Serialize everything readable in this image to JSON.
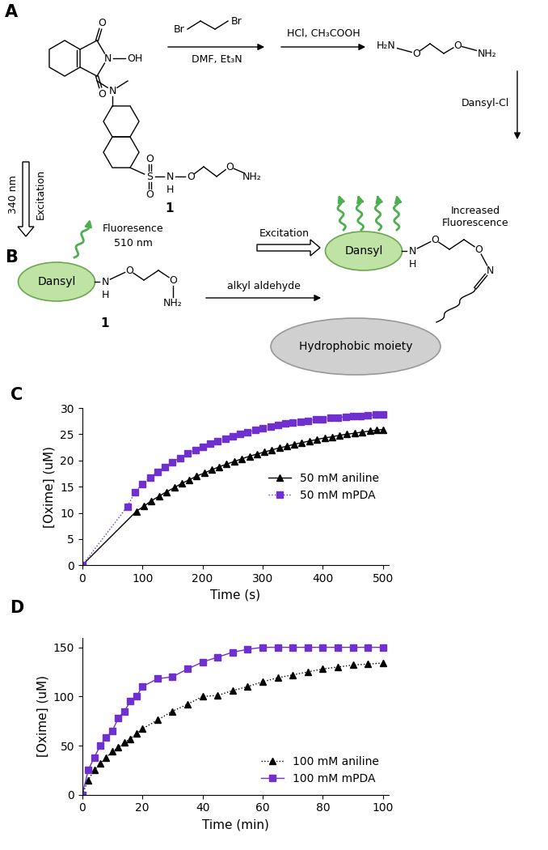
{
  "scheme": {
    "panel_labels": [
      "A",
      "B"
    ],
    "n_hydroxyphthalimide": {
      "atoms": [
        "O",
        "N",
        "OH",
        "O"
      ]
    },
    "dibromoethane": {
      "atoms": [
        "Br",
        "Br"
      ]
    },
    "step1_reagents": "DMF, Et₃N",
    "step2_reagents": "HCl, CH₃COOH",
    "bis_aminooxy": {
      "atoms": [
        "H₂N",
        "O",
        "O",
        "NH₂"
      ]
    },
    "step3_reagent": "Dansyl-Cl",
    "compound_1": {
      "atoms": [
        "N",
        "S",
        "O",
        "O",
        "N",
        "H",
        "O",
        "O",
        "NH₂"
      ],
      "label": "1"
    }
  },
  "sensor": {
    "excitation": "Excitation",
    "excitation_wavelength": "340 nm",
    "emission": "Fluoresence",
    "emission_wavelength": "510 nm",
    "probe": {
      "tag": "Dansyl",
      "atoms": [
        "N",
        "H",
        "O",
        "O",
        "NH₂"
      ],
      "label": "1"
    },
    "reagent": "alkyl aldehyde",
    "excitation_2": "Excitation",
    "result": "Increased\nFluorescence",
    "product": {
      "tag": "Dansyl",
      "atoms": [
        "N",
        "H",
        "O",
        "O",
        "N"
      ],
      "moiety": "Hydrophobic moiety"
    }
  },
  "chart_data": [
    {
      "type": "line",
      "annotations": [
        "C"
      ],
      "x_label": "Time (s)",
      "y_label": "[Oxime] (uM)",
      "xlim": [
        0,
        510
      ],
      "xticks": [
        0,
        100,
        200,
        300,
        400,
        500
      ],
      "ylim": [
        0,
        30
      ],
      "yticks": [
        0,
        5,
        10,
        15,
        20,
        25,
        30
      ],
      "legend": "center right",
      "series": [
        {
          "name": "50 mM aniline",
          "color": "#000000",
          "marker": "triangle",
          "line_style": "solid",
          "x": [
            0,
            90,
            103,
            115,
            128,
            140,
            153,
            165,
            178,
            190,
            203,
            215,
            228,
            240,
            253,
            265,
            278,
            290,
            303,
            315,
            328,
            340,
            353,
            365,
            378,
            390,
            403,
            415,
            428,
            440,
            453,
            465,
            478,
            490,
            500
          ],
          "values": [
            0,
            10.3,
            11.3,
            12.3,
            13.2,
            14.0,
            14.8,
            15.6,
            16.3,
            17.0,
            17.6,
            18.2,
            18.8,
            19.3,
            19.8,
            20.3,
            20.8,
            21.2,
            21.6,
            22.0,
            22.4,
            22.7,
            23.1,
            23.4,
            23.7,
            24.0,
            24.3,
            24.5,
            24.8,
            25.0,
            25.2,
            25.4,
            25.6,
            25.8,
            25.9
          ]
        },
        {
          "name": "50 mM mPDA",
          "color": "#7030d0",
          "marker": "square",
          "line_style": "dotted",
          "x": [
            0,
            75,
            88,
            100,
            113,
            125,
            138,
            150,
            163,
            175,
            188,
            200,
            213,
            225,
            238,
            250,
            263,
            275,
            288,
            300,
            313,
            325,
            338,
            350,
            363,
            375,
            388,
            400,
            413,
            425,
            438,
            450,
            463,
            475,
            488,
            500
          ],
          "values": [
            0,
            11.2,
            14.0,
            15.5,
            16.7,
            17.8,
            18.8,
            19.7,
            20.5,
            21.3,
            22.0,
            22.6,
            23.2,
            23.7,
            24.2,
            24.6,
            25.0,
            25.4,
            25.8,
            26.1,
            26.4,
            26.7,
            27.0,
            27.2,
            27.4,
            27.6,
            27.8,
            27.9,
            28.1,
            28.2,
            28.3,
            28.4,
            28.5,
            28.6,
            28.7,
            28.8
          ]
        }
      ]
    },
    {
      "type": "line",
      "annotations": [
        "D"
      ],
      "x_label": "Time (min)",
      "y_label": "[Oxime] (uM)",
      "xlim": [
        0,
        102
      ],
      "xticks": [
        0,
        20,
        40,
        60,
        80,
        100
      ],
      "ylim": [
        0,
        160
      ],
      "yticks": [
        0,
        50,
        100,
        150
      ],
      "legend": "lower right",
      "series": [
        {
          "name": "100 mM aniline",
          "color": "#000000",
          "marker": "triangle",
          "line_style": "dotted",
          "x": [
            0,
            2,
            4,
            6,
            8,
            10,
            12,
            14,
            16,
            18,
            20,
            25,
            30,
            35,
            40,
            45,
            50,
            55,
            60,
            65,
            70,
            75,
            80,
            85,
            90,
            95,
            100
          ],
          "values": [
            0,
            15,
            25,
            32,
            38,
            44,
            48,
            53,
            57,
            62,
            67,
            76,
            85,
            92,
            100,
            101,
            106,
            110,
            115,
            119,
            122,
            125,
            128,
            130,
            132,
            133,
            134
          ]
        },
        {
          "name": "100 mM mPDA",
          "color": "#7030d0",
          "marker": "square",
          "line_style": "solid",
          "x": [
            0,
            2,
            4,
            6,
            8,
            10,
            12,
            14,
            16,
            18,
            20,
            25,
            30,
            35,
            40,
            45,
            50,
            55,
            60,
            65,
            70,
            75,
            80,
            85,
            90,
            95,
            100
          ],
          "values": [
            0,
            25,
            38,
            50,
            58,
            65,
            78,
            85,
            95,
            100,
            110,
            118,
            120,
            128,
            135,
            140,
            145,
            148,
            150,
            150,
            150,
            150,
            150,
            150,
            150,
            150,
            150
          ]
        }
      ]
    }
  ]
}
